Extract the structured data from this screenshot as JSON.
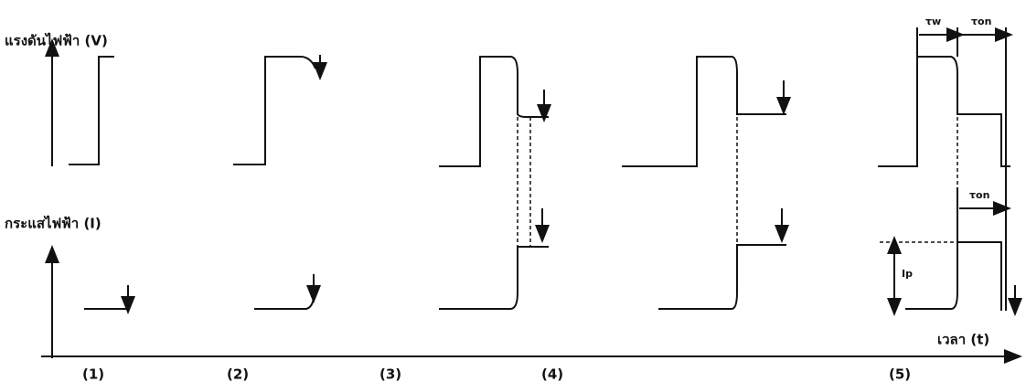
{
  "labels": {
    "voltage": "แรงดันไฟฟ้า (V)",
    "current": "กระแสไฟฟ้า (I)",
    "time": "เวลา (t)"
  },
  "stages": [
    "(1)",
    "(2)",
    "(3)",
    "(4)",
    "(5)"
  ],
  "timing": {
    "tau_w": "τw",
    "tau_on_voltage": "τon",
    "tau_on_current": "τon",
    "peak_current": "Ip"
  }
}
